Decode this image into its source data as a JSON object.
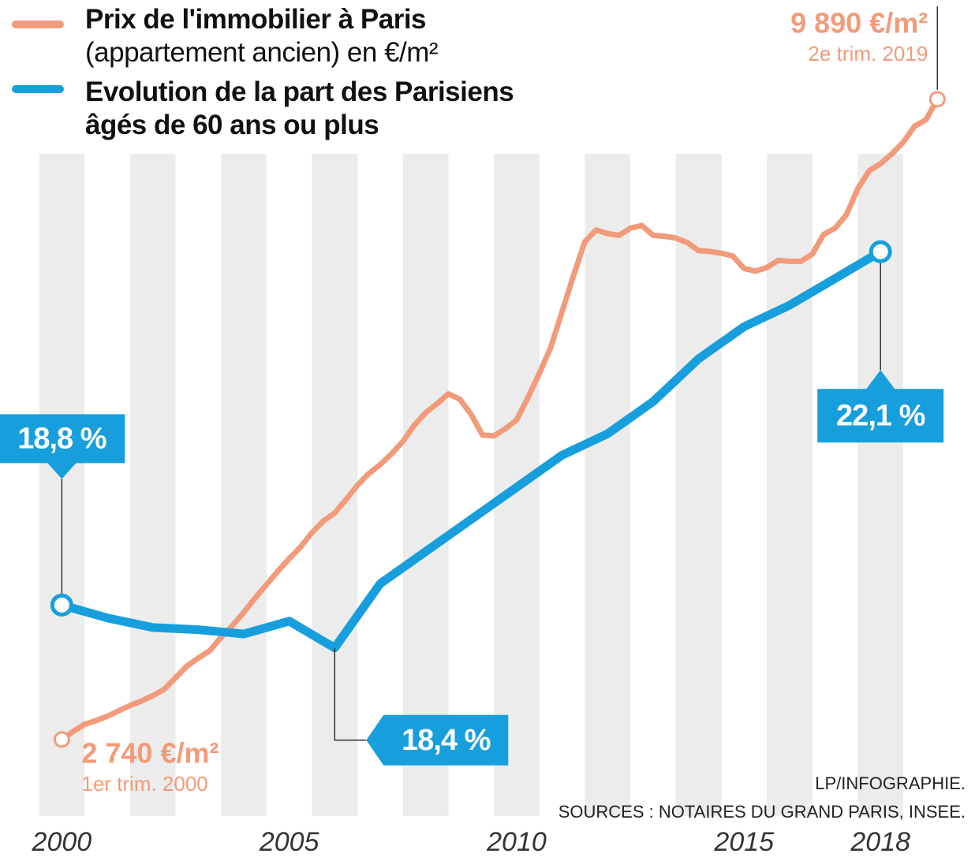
{
  "chart_data": {
    "type": "line",
    "xlim": [
      1999.3,
      2019.8
    ],
    "xticks": [
      2000,
      2005,
      2010,
      2015,
      2018
    ],
    "ylim": [
      1850,
      10100
    ],
    "y2lim": [
      16.8,
      23.7
    ],
    "series": [
      {
        "name": "Prix de l'immobilier à Paris",
        "name_detail": "(appartement ancien) en €/m²",
        "color": "#f29b7a",
        "x": [
          2000,
          2000.25,
          2000.5,
          2000.75,
          2001,
          2001.25,
          2001.5,
          2001.75,
          2002,
          2002.25,
          2002.5,
          2002.75,
          2003,
          2003.25,
          2003.5,
          2003.75,
          2004,
          2004.25,
          2004.5,
          2004.75,
          2005,
          2005.25,
          2005.5,
          2005.75,
          2006,
          2006.25,
          2006.5,
          2006.75,
          2007,
          2007.25,
          2007.5,
          2007.75,
          2008,
          2008.25,
          2008.5,
          2008.75,
          2009,
          2009.25,
          2009.5,
          2009.75,
          2010,
          2010.25,
          2010.5,
          2010.75,
          2011,
          2011.25,
          2011.5,
          2011.75,
          2012,
          2012.25,
          2012.5,
          2012.75,
          2013,
          2013.25,
          2013.5,
          2013.75,
          2014,
          2014.25,
          2014.5,
          2014.75,
          2015,
          2015.25,
          2015.5,
          2015.75,
          2016,
          2016.25,
          2016.5,
          2016.75,
          2017,
          2017.25,
          2017.5,
          2017.75,
          2018,
          2018.25,
          2018.5,
          2018.75,
          2019,
          2019.25
        ],
        "values": [
          2740,
          2830,
          2910,
          2950,
          3000,
          3060,
          3120,
          3170,
          3230,
          3300,
          3430,
          3560,
          3650,
          3730,
          3880,
          4010,
          4160,
          4320,
          4470,
          4620,
          4760,
          4890,
          5050,
          5180,
          5270,
          5420,
          5580,
          5710,
          5810,
          5930,
          6070,
          6250,
          6390,
          6490,
          6600,
          6540,
          6370,
          6140,
          6130,
          6210,
          6310,
          6560,
          6830,
          7120,
          7520,
          7920,
          8300,
          8430,
          8390,
          8370,
          8450,
          8480,
          8370,
          8360,
          8340,
          8290,
          8200,
          8190,
          8170,
          8140,
          8000,
          7970,
          8010,
          8090,
          8080,
          8080,
          8160,
          8380,
          8450,
          8600,
          8890,
          9090,
          9170,
          9280,
          9410,
          9590,
          9660,
          9890
        ],
        "value_labels": [
          "2 740 €/m²",
          null,
          null,
          null,
          null,
          null,
          null,
          null,
          null,
          null,
          null,
          null,
          null,
          null,
          null,
          null,
          null,
          null,
          null,
          null,
          null,
          null,
          null,
          null,
          null,
          null,
          null,
          null,
          null,
          null,
          null,
          null,
          null,
          null,
          null,
          null,
          null,
          null,
          null,
          null,
          null,
          null,
          null,
          null,
          null,
          null,
          null,
          null,
          null,
          null,
          null,
          null,
          null,
          null,
          null,
          null,
          null,
          null,
          null,
          null,
          null,
          null,
          null,
          null,
          null,
          null,
          null,
          null,
          null,
          null,
          null,
          null,
          null,
          null,
          null,
          null,
          null,
          "9 890 €/m²"
        ],
        "value_notes": [
          "1er trim. 2000",
          null,
          null,
          null,
          null,
          null,
          null,
          null,
          null,
          null,
          null,
          null,
          null,
          null,
          null,
          null,
          null,
          null,
          null,
          null,
          null,
          null,
          null,
          null,
          null,
          null,
          null,
          null,
          null,
          null,
          null,
          null,
          null,
          null,
          null,
          null,
          null,
          null,
          null,
          null,
          null,
          null,
          null,
          null,
          null,
          null,
          null,
          null,
          null,
          null,
          null,
          null,
          null,
          null,
          null,
          null,
          null,
          null,
          null,
          null,
          null,
          null,
          null,
          null,
          null,
          null,
          null,
          null,
          null,
          null,
          null,
          null,
          null,
          null,
          null,
          null,
          null,
          "2e trim. 2019"
        ]
      },
      {
        "name": "Evolution de la part des Parisiens âgés de 60 ans ou plus",
        "color": "#169fdc",
        "axis": "y2",
        "x": [
          2000,
          2001,
          2002,
          2003,
          2004,
          2005,
          2006,
          2007,
          2008,
          2009,
          2010,
          2011,
          2012,
          2013,
          2014,
          2015,
          2016,
          2017,
          2018
        ],
        "values": [
          18.8,
          18.68,
          18.59,
          18.57,
          18.53,
          18.65,
          18.4,
          19.0,
          19.3,
          19.6,
          19.9,
          20.2,
          20.4,
          20.7,
          21.1,
          21.4,
          21.6,
          21.85,
          22.1
        ],
        "value_labels": [
          "18,8 %",
          null,
          null,
          null,
          null,
          null,
          "18,4 %",
          null,
          null,
          null,
          null,
          null,
          null,
          null,
          null,
          null,
          null,
          null,
          "22,1 %"
        ]
      }
    ],
    "credits": [
      "LP/INFOGRAPHIE.",
      "SOURCES : NOTAIRES DU GRAND PARIS, INSEE."
    ]
  }
}
